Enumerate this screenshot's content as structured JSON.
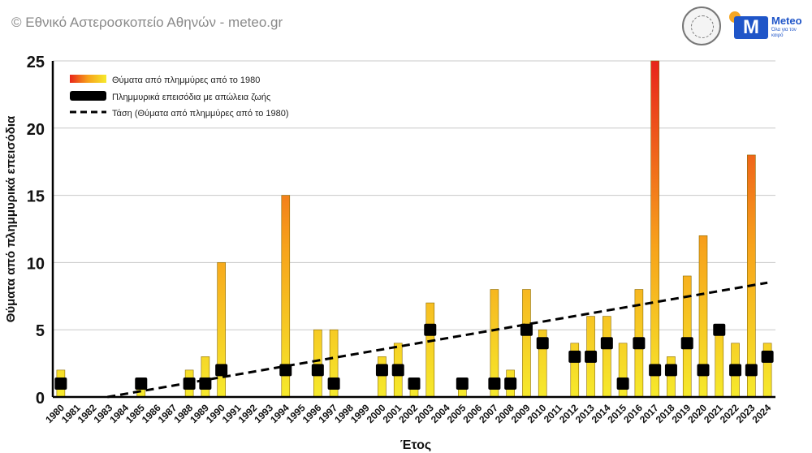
{
  "header": {
    "credit": "© Εθνικό Αστεροσκοπείο Αθηνών - meteo.gr",
    "logo_brand": "Meteo",
    "logo_tagline": "Όλα για τον καιρό",
    "logo_letter": "M"
  },
  "colors": {
    "bar_top": "#e8251a",
    "bar_mid": "#f7a21b",
    "bar_bottom": "#f6ea2c",
    "marker": "#000000",
    "trend": "#000000",
    "grid": "#c8c8c8"
  },
  "chart_data": {
    "type": "bar",
    "title": "",
    "xlabel": "Έτος",
    "ylabel": "Θύματα από πλημμυρικά επεισόδια",
    "ylim": [
      0,
      25
    ],
    "yticks": [
      0,
      5,
      10,
      15,
      20,
      25
    ],
    "grid": true,
    "legend_position": "top-left",
    "categories": [
      "1980",
      "1981",
      "1982",
      "1983",
      "1984",
      "1985",
      "1986",
      "1987",
      "1988",
      "1989",
      "1990",
      "1991",
      "1992",
      "1993",
      "1994",
      "1995",
      "1996",
      "1997",
      "1998",
      "1999",
      "2000",
      "2001",
      "2002",
      "2003",
      "2004",
      "2005",
      "2006",
      "2007",
      "2008",
      "2009",
      "2010",
      "2011",
      "2012",
      "2013",
      "2014",
      "2015",
      "2016",
      "2017",
      "2018",
      "2019",
      "2020",
      "2021",
      "2022",
      "2023",
      "2024"
    ],
    "series": [
      {
        "name": "Θύματα από πλημμύρες από το 1980",
        "kind": "bar",
        "values": [
          2,
          0,
          0,
          0,
          0,
          1,
          0,
          0,
          2,
          3,
          10,
          0,
          0,
          0,
          15,
          0,
          5,
          5,
          0,
          0,
          3,
          4,
          1,
          7,
          0,
          1,
          0,
          8,
          2,
          8,
          5,
          0,
          4,
          6,
          6,
          4,
          8,
          25,
          3,
          9,
          12,
          5,
          4,
          18,
          4
        ]
      },
      {
        "name": "Πλημμυρικά επεισόδια με απώλεια ζωής",
        "kind": "marker",
        "values": [
          1,
          0,
          0,
          0,
          0,
          1,
          0,
          0,
          1,
          1,
          2,
          0,
          0,
          0,
          2,
          0,
          2,
          1,
          0,
          0,
          2,
          2,
          1,
          5,
          0,
          1,
          0,
          1,
          1,
          5,
          4,
          0,
          3,
          3,
          4,
          1,
          4,
          2,
          2,
          4,
          2,
          5,
          2,
          2,
          3
        ]
      },
      {
        "name": "Τάση (Θύματα από πλημμύρες από το 1980)",
        "kind": "trend",
        "start": [
          1980,
          -0.6
        ],
        "end": [
          2024,
          8.5
        ]
      }
    ]
  }
}
